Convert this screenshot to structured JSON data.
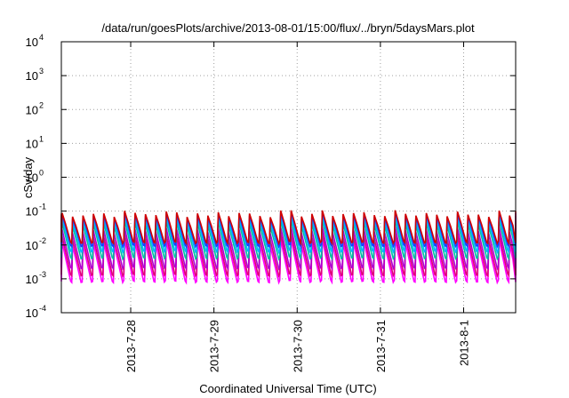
{
  "chart_data": {
    "type": "line",
    "title": "/data/run/goesPlots/archive/2013-08-01/15:00/flux/../bryn/5daysMars.plot",
    "xlabel": "Coordinated Universal Time (UTC)",
    "ylabel": "cSv/day",
    "yscale": "log",
    "ylim": [
      "1e-4",
      "1e4"
    ],
    "xlim": [
      "2013-07-27 04:00",
      "2013-08-01 15:00"
    ],
    "xticks": [
      {
        "date": "2013-07-28 00:00",
        "label": "2013-7-28"
      },
      {
        "date": "2013-07-29 00:00",
        "label": "2013-7-29"
      },
      {
        "date": "2013-07-30 00:00",
        "label": "2013-7-30"
      },
      {
        "date": "2013-07-31 00:00",
        "label": "2013-7-31"
      },
      {
        "date": "2013-08-01 00:00",
        "label": "2013-8-1"
      }
    ],
    "yticks": [
      {
        "value": -4,
        "base": "10",
        "exp": "-4"
      },
      {
        "value": -3,
        "base": "10",
        "exp": "-3"
      },
      {
        "value": -2,
        "base": "10",
        "exp": "-2"
      },
      {
        "value": -1,
        "base": "10",
        "exp": "-1"
      },
      {
        "value": 0,
        "base": "10",
        "exp": "0"
      },
      {
        "value": 1,
        "base": "10",
        "exp": "1"
      },
      {
        "value": 2,
        "base": "10",
        "exp": "2"
      },
      {
        "value": 3,
        "base": "10",
        "exp": "3"
      },
      {
        "value": 4,
        "base": "10",
        "exp": "4"
      }
    ],
    "grid": true,
    "sawtooth_period_hours": 3,
    "series": [
      {
        "color": "#ff00ff",
        "peak": 0.012,
        "trough": 0.0007
      },
      {
        "color": "#e0007a",
        "peak": 0.018,
        "trough": 0.0011
      },
      {
        "color": "#b000d0",
        "peak": 0.028,
        "trough": 0.0018
      },
      {
        "color": "#00c0a0",
        "peak": 0.045,
        "trough": 0.0035
      },
      {
        "color": "#00b4ff",
        "peak": 0.06,
        "trough": 0.0055
      },
      {
        "color": "#1e3cff",
        "peak": 0.075,
        "trough": 0.008
      },
      {
        "color": "#d00000",
        "peak": 0.085,
        "trough": 0.01
      }
    ]
  }
}
